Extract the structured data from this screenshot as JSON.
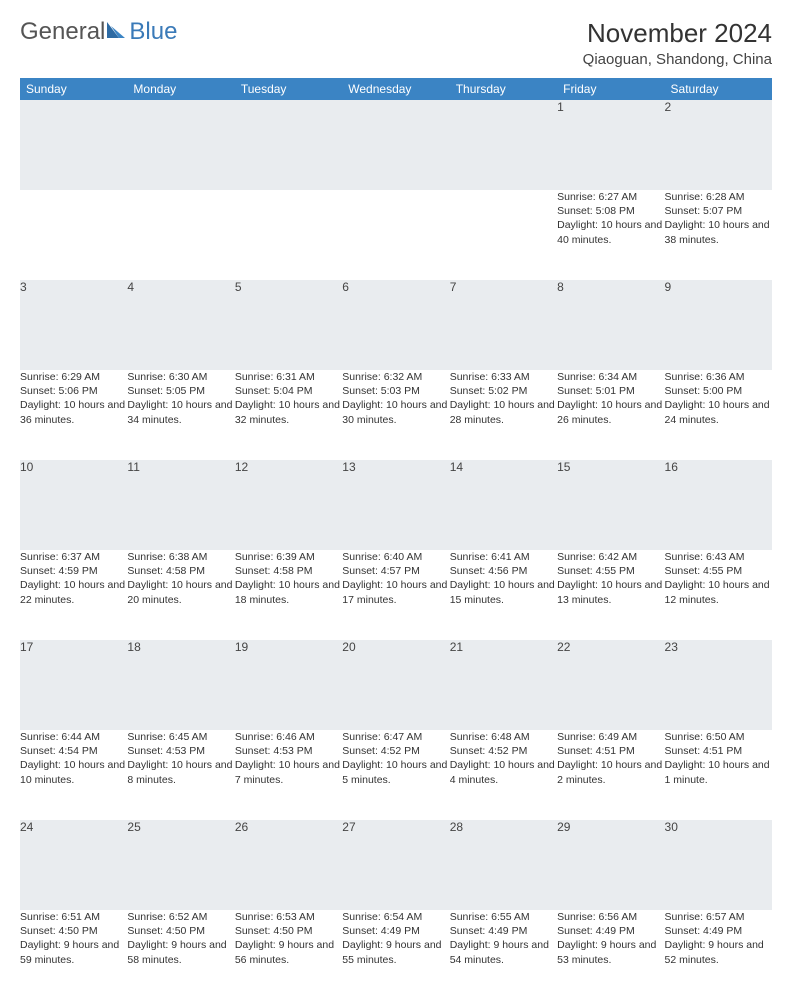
{
  "logo": {
    "text1": "General",
    "text2": "Blue"
  },
  "title": "November 2024",
  "location": "Qiaoguan, Shandong, China",
  "colors": {
    "header_bg": "#3b84c4",
    "header_text": "#ffffff",
    "daynum_bg": "#e9ecef",
    "border": "#bfc5ca",
    "body_text": "#333333",
    "logo_gray": "#555555",
    "logo_blue": "#3a7ab8"
  },
  "day_names": [
    "Sunday",
    "Monday",
    "Tuesday",
    "Wednesday",
    "Thursday",
    "Friday",
    "Saturday"
  ],
  "weeks": [
    [
      null,
      null,
      null,
      null,
      null,
      {
        "n": "1",
        "sr": "6:27 AM",
        "ss": "5:08 PM",
        "dl": "10 hours and 40 minutes."
      },
      {
        "n": "2",
        "sr": "6:28 AM",
        "ss": "5:07 PM",
        "dl": "10 hours and 38 minutes."
      }
    ],
    [
      {
        "n": "3",
        "sr": "6:29 AM",
        "ss": "5:06 PM",
        "dl": "10 hours and 36 minutes."
      },
      {
        "n": "4",
        "sr": "6:30 AM",
        "ss": "5:05 PM",
        "dl": "10 hours and 34 minutes."
      },
      {
        "n": "5",
        "sr": "6:31 AM",
        "ss": "5:04 PM",
        "dl": "10 hours and 32 minutes."
      },
      {
        "n": "6",
        "sr": "6:32 AM",
        "ss": "5:03 PM",
        "dl": "10 hours and 30 minutes."
      },
      {
        "n": "7",
        "sr": "6:33 AM",
        "ss": "5:02 PM",
        "dl": "10 hours and 28 minutes."
      },
      {
        "n": "8",
        "sr": "6:34 AM",
        "ss": "5:01 PM",
        "dl": "10 hours and 26 minutes."
      },
      {
        "n": "9",
        "sr": "6:36 AM",
        "ss": "5:00 PM",
        "dl": "10 hours and 24 minutes."
      }
    ],
    [
      {
        "n": "10",
        "sr": "6:37 AM",
        "ss": "4:59 PM",
        "dl": "10 hours and 22 minutes."
      },
      {
        "n": "11",
        "sr": "6:38 AM",
        "ss": "4:58 PM",
        "dl": "10 hours and 20 minutes."
      },
      {
        "n": "12",
        "sr": "6:39 AM",
        "ss": "4:58 PM",
        "dl": "10 hours and 18 minutes."
      },
      {
        "n": "13",
        "sr": "6:40 AM",
        "ss": "4:57 PM",
        "dl": "10 hours and 17 minutes."
      },
      {
        "n": "14",
        "sr": "6:41 AM",
        "ss": "4:56 PM",
        "dl": "10 hours and 15 minutes."
      },
      {
        "n": "15",
        "sr": "6:42 AM",
        "ss": "4:55 PM",
        "dl": "10 hours and 13 minutes."
      },
      {
        "n": "16",
        "sr": "6:43 AM",
        "ss": "4:55 PM",
        "dl": "10 hours and 12 minutes."
      }
    ],
    [
      {
        "n": "17",
        "sr": "6:44 AM",
        "ss": "4:54 PM",
        "dl": "10 hours and 10 minutes."
      },
      {
        "n": "18",
        "sr": "6:45 AM",
        "ss": "4:53 PM",
        "dl": "10 hours and 8 minutes."
      },
      {
        "n": "19",
        "sr": "6:46 AM",
        "ss": "4:53 PM",
        "dl": "10 hours and 7 minutes."
      },
      {
        "n": "20",
        "sr": "6:47 AM",
        "ss": "4:52 PM",
        "dl": "10 hours and 5 minutes."
      },
      {
        "n": "21",
        "sr": "6:48 AM",
        "ss": "4:52 PM",
        "dl": "10 hours and 4 minutes."
      },
      {
        "n": "22",
        "sr": "6:49 AM",
        "ss": "4:51 PM",
        "dl": "10 hours and 2 minutes."
      },
      {
        "n": "23",
        "sr": "6:50 AM",
        "ss": "4:51 PM",
        "dl": "10 hours and 1 minute."
      }
    ],
    [
      {
        "n": "24",
        "sr": "6:51 AM",
        "ss": "4:50 PM",
        "dl": "9 hours and 59 minutes."
      },
      {
        "n": "25",
        "sr": "6:52 AM",
        "ss": "4:50 PM",
        "dl": "9 hours and 58 minutes."
      },
      {
        "n": "26",
        "sr": "6:53 AM",
        "ss": "4:50 PM",
        "dl": "9 hours and 56 minutes."
      },
      {
        "n": "27",
        "sr": "6:54 AM",
        "ss": "4:49 PM",
        "dl": "9 hours and 55 minutes."
      },
      {
        "n": "28",
        "sr": "6:55 AM",
        "ss": "4:49 PM",
        "dl": "9 hours and 54 minutes."
      },
      {
        "n": "29",
        "sr": "6:56 AM",
        "ss": "4:49 PM",
        "dl": "9 hours and 53 minutes."
      },
      {
        "n": "30",
        "sr": "6:57 AM",
        "ss": "4:49 PM",
        "dl": "9 hours and 52 minutes."
      }
    ]
  ],
  "labels": {
    "sunrise": "Sunrise:",
    "sunset": "Sunset:",
    "daylight": "Daylight:"
  }
}
